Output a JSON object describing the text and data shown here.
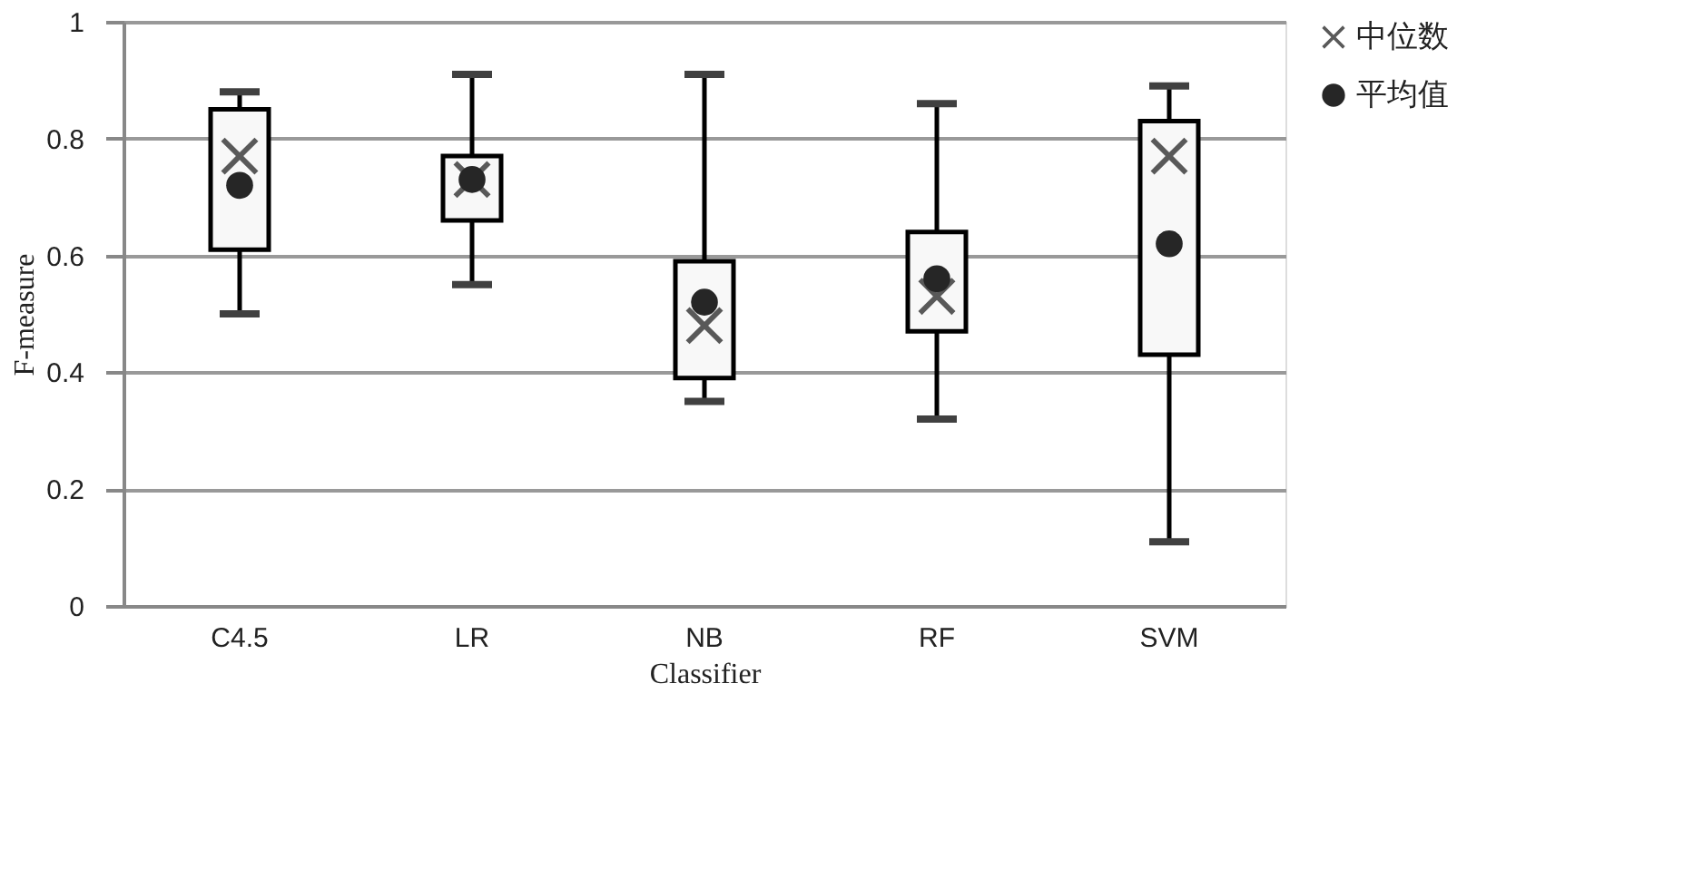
{
  "chart_data": {
    "type": "box",
    "xlabel": "Classifier",
    "ylabel": "F-measure",
    "categories": [
      "C4.5",
      "LR",
      "NB",
      "RF",
      "SVM"
    ],
    "boxes": [
      {
        "low": 0.5,
        "q1": 0.61,
        "q3": 0.85,
        "high": 0.88
      },
      {
        "low": 0.55,
        "q1": 0.66,
        "q3": 0.77,
        "high": 0.91
      },
      {
        "low": 0.35,
        "q1": 0.39,
        "q3": 0.59,
        "high": 0.91
      },
      {
        "low": 0.32,
        "q1": 0.47,
        "q3": 0.64,
        "high": 0.86
      },
      {
        "low": 0.11,
        "q1": 0.43,
        "q3": 0.83,
        "high": 0.89
      }
    ],
    "series": [
      {
        "name": "中位数",
        "type": "scatter",
        "marker": "cross",
        "color": "#595959",
        "x": [
          "C4.5",
          "LR",
          "NB",
          "RF",
          "SVM"
        ],
        "values": [
          0.77,
          0.73,
          0.48,
          0.53,
          0.77
        ]
      },
      {
        "name": "平均值",
        "type": "scatter",
        "marker": "circle",
        "color": "#262626",
        "x": [
          "C4.5",
          "LR",
          "NB",
          "RF",
          "SVM"
        ],
        "values": [
          0.72,
          0.73,
          0.52,
          0.56,
          0.62
        ]
      }
    ],
    "ylim": [
      0,
      1
    ],
    "yticks": [
      0,
      0.2,
      0.4,
      0.6,
      0.8,
      1
    ],
    "grid": "y",
    "legend": "right"
  }
}
